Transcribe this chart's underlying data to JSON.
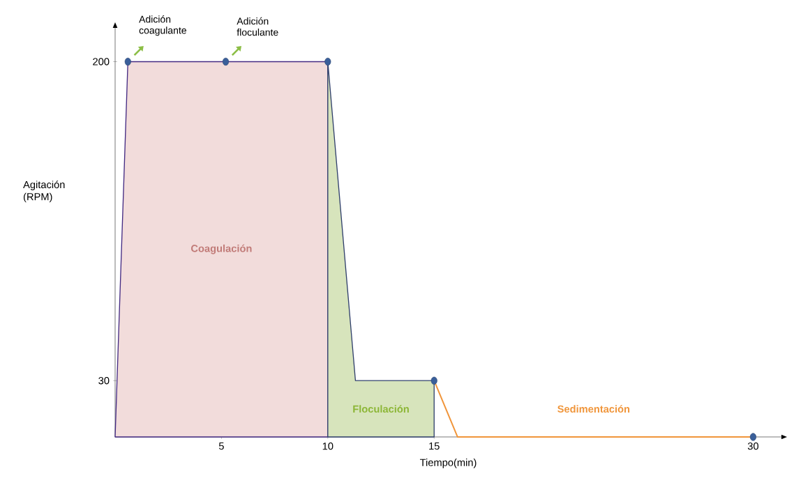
{
  "chart_data": {
    "type": "area",
    "xlabel": "Tiempo(min)",
    "ylabel": "Agitación (RPM)",
    "xlim": [
      0,
      31.33
    ],
    "ylim": [
      0,
      218
    ],
    "xticks": [
      5,
      10,
      15,
      30
    ],
    "yticks": [
      30,
      200
    ],
    "grid": false,
    "series": [
      {
        "name": "Coagulación",
        "color": "#f2dcdb",
        "x": [
          0,
          0.6,
          10
        ],
        "values": [
          0,
          200,
          200
        ]
      },
      {
        "name": "Floculación",
        "color": "#d7e4bc",
        "x": [
          10,
          11.3,
          15
        ],
        "values": [
          200,
          30,
          30
        ]
      },
      {
        "name": "Sedimentación",
        "type": "line",
        "color": "#f0953a",
        "x": [
          15,
          16.1,
          30
        ],
        "values": [
          30,
          0,
          0
        ]
      },
      {
        "type": "scatter",
        "color": "#3a5f9a",
        "marker": "circle",
        "x": [
          0.6,
          5.2,
          10,
          15,
          30
        ],
        "values": [
          200,
          200,
          200,
          30,
          0
        ]
      }
    ],
    "annotations": [
      {
        "text": "Adición coagulante",
        "x": 0.6,
        "y": 200
      },
      {
        "text": "Adición floculante",
        "x": 5.2,
        "y": 200
      }
    ]
  }
}
